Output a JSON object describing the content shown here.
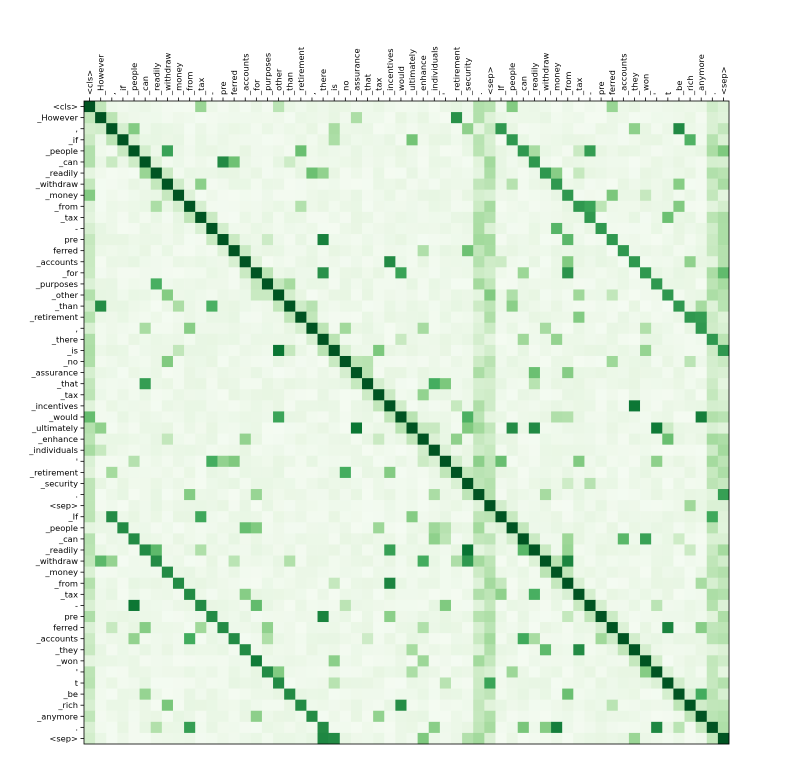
{
  "chart_data": {
    "type": "heatmap",
    "tokens": [
      "<cls>",
      "_However",
      ",",
      "_if",
      "_people",
      "_can",
      "_readily",
      "_withdraw",
      "_money",
      "_from",
      "_tax",
      "-",
      "pre",
      "ferred",
      "_accounts",
      "_for",
      "_purposes",
      "_other",
      "_than",
      "_retirement",
      ",",
      "_there",
      "_is",
      "_no",
      "_assurance",
      "_that",
      "_tax",
      "_incentives",
      "_would",
      "_ultimately",
      "_enhance",
      "_individuals",
      "'",
      "_retirement",
      "_security",
      ".",
      "<sep>",
      "_If",
      "_people",
      "_can",
      "_readily",
      "_withdraw",
      "_money",
      "_from",
      "_tax",
      "-",
      "pre",
      "ferred",
      "_accounts",
      "_they",
      "_won",
      "'",
      "t",
      "_be",
      "_rich",
      "_anymore",
      ".",
      "<sep>"
    ],
    "x_labels_position": "top",
    "y_labels_position": "left",
    "value_range": [
      0,
      1
    ],
    "colormap": "Greens",
    "low_color": "#f7fcf5",
    "high_color": "#00441b",
    "grid": false,
    "legend": "none"
  }
}
